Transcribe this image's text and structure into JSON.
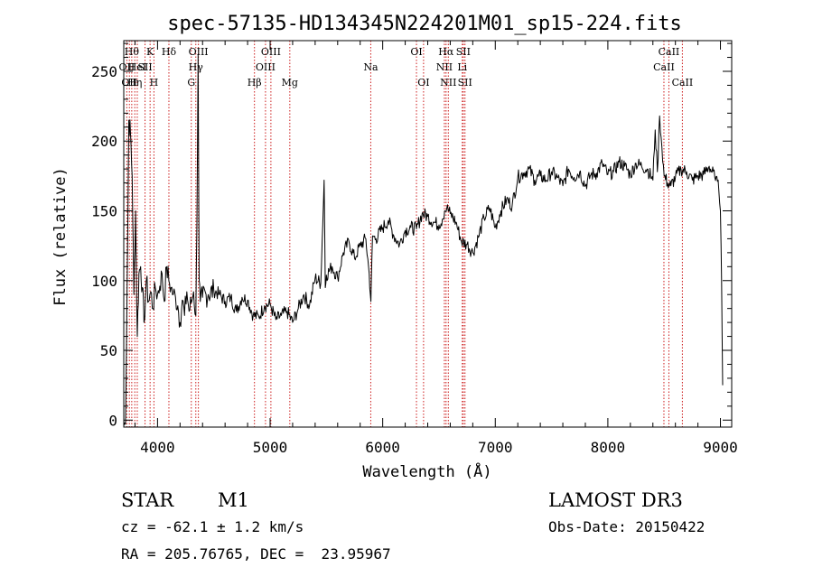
{
  "chart_data": {
    "type": "line",
    "title": "spec-57135-HD134345N224201M01_sp15-224.fits",
    "xlabel": "Wavelength (Å)",
    "ylabel": "Flux (relative)",
    "xlim": [
      3700,
      9100
    ],
    "ylim": [
      -5,
      272
    ],
    "xticks": [
      4000,
      5000,
      6000,
      7000,
      8000,
      9000
    ],
    "yticks": [
      0,
      50,
      100,
      150,
      200,
      250
    ],
    "series": [
      {
        "name": "spectrum",
        "x": [
          3700,
          3715,
          3730,
          3745,
          3760,
          3775,
          3790,
          3805,
          3820,
          3835,
          3850,
          3865,
          3880,
          3900,
          3920,
          3940,
          3960,
          3980,
          4000,
          4020,
          4040,
          4060,
          4080,
          4100,
          4120,
          4140,
          4160,
          4180,
          4200,
          4220,
          4240,
          4260,
          4280,
          4300,
          4320,
          4340,
          4350,
          4360,
          4370,
          4380,
          4400,
          4450,
          4500,
          4550,
          4600,
          4650,
          4700,
          4750,
          4800,
          4850,
          4900,
          4950,
          5000,
          5050,
          5100,
          5150,
          5200,
          5250,
          5300,
          5350,
          5400,
          5450,
          5480,
          5490,
          5500,
          5550,
          5600,
          5650,
          5700,
          5750,
          5800,
          5850,
          5880,
          5895,
          5910,
          5940,
          6000,
          6050,
          6100,
          6150,
          6200,
          6250,
          6300,
          6350,
          6400,
          6450,
          6500,
          6530,
          6550,
          6570,
          6600,
          6650,
          6700,
          6750,
          6800,
          6850,
          6900,
          6950,
          7000,
          7050,
          7100,
          7150,
          7200,
          7250,
          7300,
          7350,
          7400,
          7450,
          7500,
          7550,
          7600,
          7650,
          7700,
          7750,
          7800,
          7850,
          7900,
          7950,
          8000,
          8050,
          8100,
          8150,
          8200,
          8250,
          8300,
          8350,
          8400,
          8420,
          8440,
          8460,
          8480,
          8500,
          8530,
          8560,
          8600,
          8650,
          8700,
          8750,
          8800,
          8850,
          8900,
          8950,
          8980,
          9000,
          9010,
          9020
        ],
        "y": [
          -3,
          -3,
          95,
          215,
          205,
          175,
          90,
          150,
          60,
          105,
          110,
          95,
          70,
          100,
          85,
          92,
          80,
          95,
          90,
          96,
          105,
          85,
          110,
          100,
          95,
          90,
          88,
          82,
          70,
          86,
          75,
          92,
          78,
          84,
          92,
          75,
          140,
          262,
          100,
          85,
          88,
          90,
          93,
          90,
          85,
          88,
          78,
          88,
          86,
          75,
          74,
          82,
          83,
          72,
          75,
          78,
          70,
          80,
          90,
          82,
          102,
          98,
          172,
          95,
          104,
          110,
          102,
          120,
          128,
          116,
          125,
          130,
          105,
          85,
          132,
          130,
          138,
          143,
          132,
          126,
          136,
          138,
          137,
          148,
          146,
          142,
          140,
          144,
          150,
          152,
          148,
          142,
          128,
          126,
          120,
          131,
          145,
          152,
          138,
          150,
          158,
          154,
          174,
          177,
          180,
          172,
          175,
          172,
          178,
          174,
          168,
          180,
          174,
          178,
          168,
          176,
          177,
          184,
          176,
          178,
          185,
          182,
          176,
          184,
          182,
          180,
          172,
          208,
          178,
          218,
          196,
          175,
          170,
          168,
          174,
          180,
          178,
          172,
          175,
          176,
          182,
          174,
          172,
          150,
          100,
          25
        ]
      }
    ],
    "line_markers": [
      {
        "wavelength": 3727,
        "label": "OII",
        "row": 2
      },
      {
        "wavelength": 3750,
        "label": "OII",
        "row": 3
      },
      {
        "wavelength": 3771,
        "label": "Hθ",
        "row": 1
      },
      {
        "wavelength": 3798,
        "label": "Hη",
        "row": 3
      },
      {
        "wavelength": 3820,
        "label": "HeI",
        "row": 2
      },
      {
        "wavelength": 3889,
        "label": "SII",
        "row": 2
      },
      {
        "wavelength": 3934,
        "label": "K",
        "row": 1
      },
      {
        "wavelength": 3968,
        "label": "H",
        "row": 3
      },
      {
        "wavelength": 4101,
        "label": "Hδ",
        "row": 1
      },
      {
        "wavelength": 4300,
        "label": "G",
        "row": 3
      },
      {
        "wavelength": 4340,
        "label": "Hγ",
        "row": 2
      },
      {
        "wavelength": 4363,
        "label": "OIII",
        "row": 1
      },
      {
        "wavelength": 4861,
        "label": "Hβ",
        "row": 3
      },
      {
        "wavelength": 4959,
        "label": "OIII",
        "row": 2
      },
      {
        "wavelength": 5007,
        "label": "OIII",
        "row": 1
      },
      {
        "wavelength": 5175,
        "label": "Mg",
        "row": 3
      },
      {
        "wavelength": 5894,
        "label": "Na",
        "row": 2
      },
      {
        "wavelength": 6300,
        "label": "OI",
        "row": 1
      },
      {
        "wavelength": 6363,
        "label": "OI",
        "row": 3
      },
      {
        "wavelength": 6548,
        "label": "NII",
        "row": 2
      },
      {
        "wavelength": 6563,
        "label": "Hα",
        "row": 1
      },
      {
        "wavelength": 6583,
        "label": "NII",
        "row": 3
      },
      {
        "wavelength": 6707,
        "label": "Li",
        "row": 2
      },
      {
        "wavelength": 6716,
        "label": "SII",
        "row": 1
      },
      {
        "wavelength": 6731,
        "label": "SII",
        "row": 3
      },
      {
        "wavelength": 8498,
        "label": "CaII",
        "row": 2
      },
      {
        "wavelength": 8542,
        "label": "CaII",
        "row": 1
      },
      {
        "wavelength": 8662,
        "label": "CaII",
        "row": 3
      }
    ]
  },
  "info": {
    "class": "STAR",
    "subclass": "M1",
    "survey": "LAMOST DR3",
    "cz": "cz = -62.1 ± 1.2 km/s",
    "obs_date": "Obs-Date: 20150422",
    "coords": "RA = 205.76765, DEC =  23.95967"
  },
  "colors": {
    "marker": "#cc1a1a",
    "line": "#000000"
  }
}
